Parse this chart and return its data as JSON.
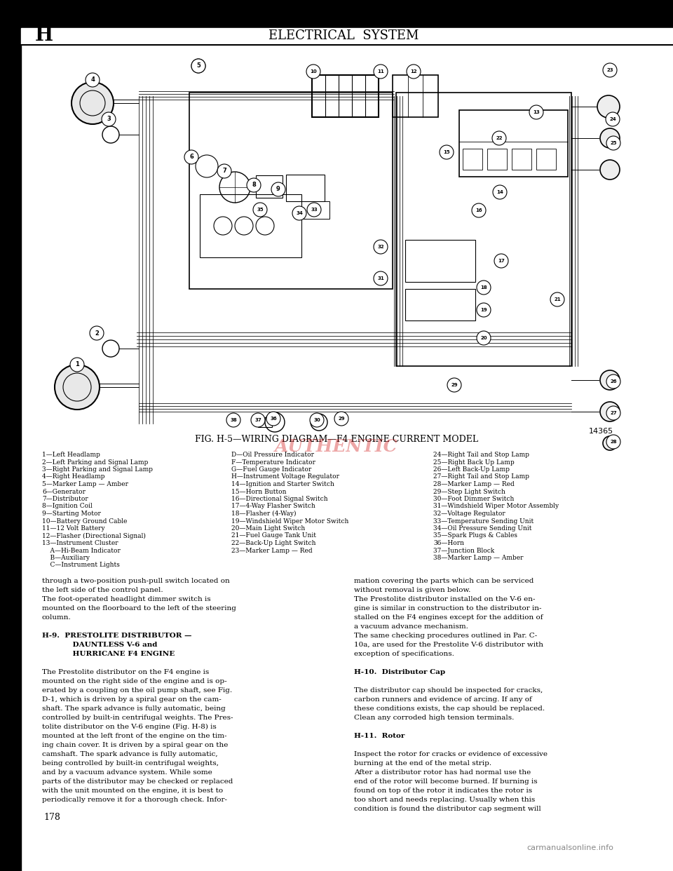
{
  "page_bg": "#ffffff",
  "border_color": "#000000",
  "header_text": "ELECTRICAL  SYSTEM",
  "header_letter": "H",
  "figure_title": "FIG. H-5—WIRING DIAGRAM—F4 ENGINE CURRENT MODEL",
  "part_number": "14365",
  "page_number": "178",
  "watermark": "AUTHENTIC",
  "watermark_color": "#cc0000",
  "footer_url": "carmanualsonline.info",
  "legend_col1": [
    "1—Left Headlamp",
    "2—Left Parking and Signal Lamp",
    "3—Right Parking and Signal Lamp",
    "4—Right Headlamp",
    "5—Marker Lamp — Amber",
    "6—Generator",
    "7—Distributor",
    "8—Ignition Coil",
    "9—Starting Motor",
    "10—Battery Ground Cable",
    "11—12 Volt Battery",
    "12—Flasher (Directional Signal)",
    "13—Instrument Cluster",
    "    A—Hi-Beam Indicator",
    "    B—Auxiliary",
    "    C—Instrument Lights"
  ],
  "legend_col2": [
    "D—Oil Pressure Indicator",
    "F—Temperature Indicator",
    "G—Fuel Gauge Indicator",
    "H—Instrument Voltage Regulator",
    "14—Ignition and Starter Switch",
    "15—Horn Button",
    "16—Directional Signal Switch",
    "17—4-Way Flasher Switch",
    "18—Flasher (4-Way)",
    "19—Windshield Wiper Motor Switch",
    "20—Main Light Switch",
    "21—Fuel Gauge Tank Unit",
    "22—Back-Up Light Switch",
    "23—Marker Lamp — Red"
  ],
  "legend_col3": [
    "24—Right Tail and Stop Lamp",
    "25—Right Back Up Lamp",
    "26—Left Back-Up Lamp",
    "27—Right Tail and Stop Lamp",
    "28—Marker Lamp — Red",
    "29—Step Light Switch",
    "30—Foot Dimmer Switch",
    "31—Windshield Wiper Motor Assembly",
    "32—Voltage Regulator",
    "33—Temperature Sending Unit",
    "34—Oil Pressure Sending Unit",
    "35—Spark Plugs & Cables",
    "36—Horn",
    "37—Junction Block",
    "38—Marker Lamp — Amber"
  ],
  "body_text_col1": [
    "through a two-position push-pull switch located on",
    "the left side of the control panel.",
    "The foot-operated headlight dimmer switch is",
    "mounted on the floorboard to the left of the steering",
    "column.",
    "",
    "H-9.  PRESTOLITE DISTRIBUTOR —",
    "            DAUNTLESS V-6 and",
    "            HURRICANE F4 ENGINE",
    "",
    "The Prestolite distributor on the F4 engine is",
    "mounted on the right side of the engine and is op-",
    "erated by a coupling on the oil pump shaft, see Fig.",
    "D-1, which is driven by a spiral gear on the cam-",
    "shaft. The spark advance is fully automatic, being",
    "controlled by built-in centrifugal weights. The Pres-",
    "tolite distributor on the V-6 engine (Fig. H-8) is",
    "mounted at the left front of the engine on the tim-",
    "ing chain cover. It is driven by a spiral gear on the",
    "camshaft. The spark advance is fully automatic,",
    "being controlled by built-in centrifugal weights,",
    "and by a vacuum advance system. While some",
    "parts of the distributor may be checked or replaced",
    "with the unit mounted on the engine, it is best to",
    "periodically remove it for a thorough check. Infor-"
  ],
  "body_text_col2": [
    "mation covering the parts which can be serviced",
    "without removal is given below.",
    "The Prestolite distributor installed on the V-6 en-",
    "gine is similar in construction to the distributor in-",
    "stalled on the F4 engines except for the addition of",
    "a vacuum advance mechanism.",
    "The same checking procedures outlined in Par. C-",
    "10a, are used for the Prestolite V-6 distributor with",
    "exception of specifications.",
    "",
    "H-10.  Distributor Cap",
    "",
    "The distributor cap should be inspected for cracks,",
    "carbon runners and evidence of arcing. If any of",
    "these conditions exists, the cap should be replaced.",
    "Clean any corroded high tension terminals.",
    "",
    "H-11.  Rotor",
    "",
    "Inspect the rotor for cracks or evidence of excessive",
    "burning at the end of the metal strip.",
    "After a distributor rotor has had normal use the",
    "end of the rotor will become burned. If burning is",
    "found on top of the rotor it indicates the rotor is",
    "too short and needs replacing. Usually when this",
    "condition is found the distributor cap segment will"
  ]
}
